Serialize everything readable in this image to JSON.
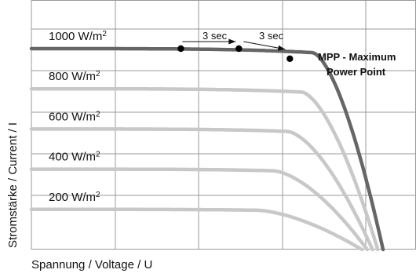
{
  "chart_data": {
    "type": "line",
    "title": "",
    "xlabel": "Spannung / Voltage / U",
    "ylabel": "Stromstärke / Current / I",
    "grid": true,
    "legend": "none",
    "series": [
      {
        "name": "1000 W/m²",
        "label_main": "1000 W/m",
        "label_sup": "2",
        "isc": 1.0,
        "voc": 1.0,
        "knee": 0.8,
        "color": "#666666"
      },
      {
        "name": "800 W/m²",
        "label_main": "800 W/m",
        "label_sup": "2",
        "isc": 0.8,
        "voc": 0.985,
        "knee": 0.78,
        "color": "#c8c8c8"
      },
      {
        "name": "600 W/m²",
        "label_main": "600 W/m",
        "label_sup": "2",
        "isc": 0.6,
        "voc": 0.97,
        "knee": 0.75,
        "color": "#c8c8c8"
      },
      {
        "name": "400 W/m²",
        "label_main": "400 W/m",
        "label_sup": "2",
        "isc": 0.4,
        "voc": 0.955,
        "knee": 0.72,
        "color": "#c8c8c8"
      },
      {
        "name": "200 W/m²",
        "label_main": "200 W/m",
        "label_sup": "2",
        "isc": 0.2,
        "voc": 0.94,
        "knee": 0.68,
        "color": "#c8c8c8"
      }
    ],
    "tracking_points": [
      {
        "v": 0.425,
        "i": 1.0
      },
      {
        "v": 0.59,
        "i": 1.0
      },
      {
        "v": 0.735,
        "i": 0.95
      }
    ],
    "annotations": {
      "step1": "3 sec",
      "step2": "3 sec",
      "mpp_line1": "MPP - Maximum",
      "mpp_line2": "Power Point"
    },
    "colors": {
      "grid": "#999999",
      "main_curve": "#666666",
      "other_curves": "#c8c8c8",
      "points": "#000000"
    }
  }
}
